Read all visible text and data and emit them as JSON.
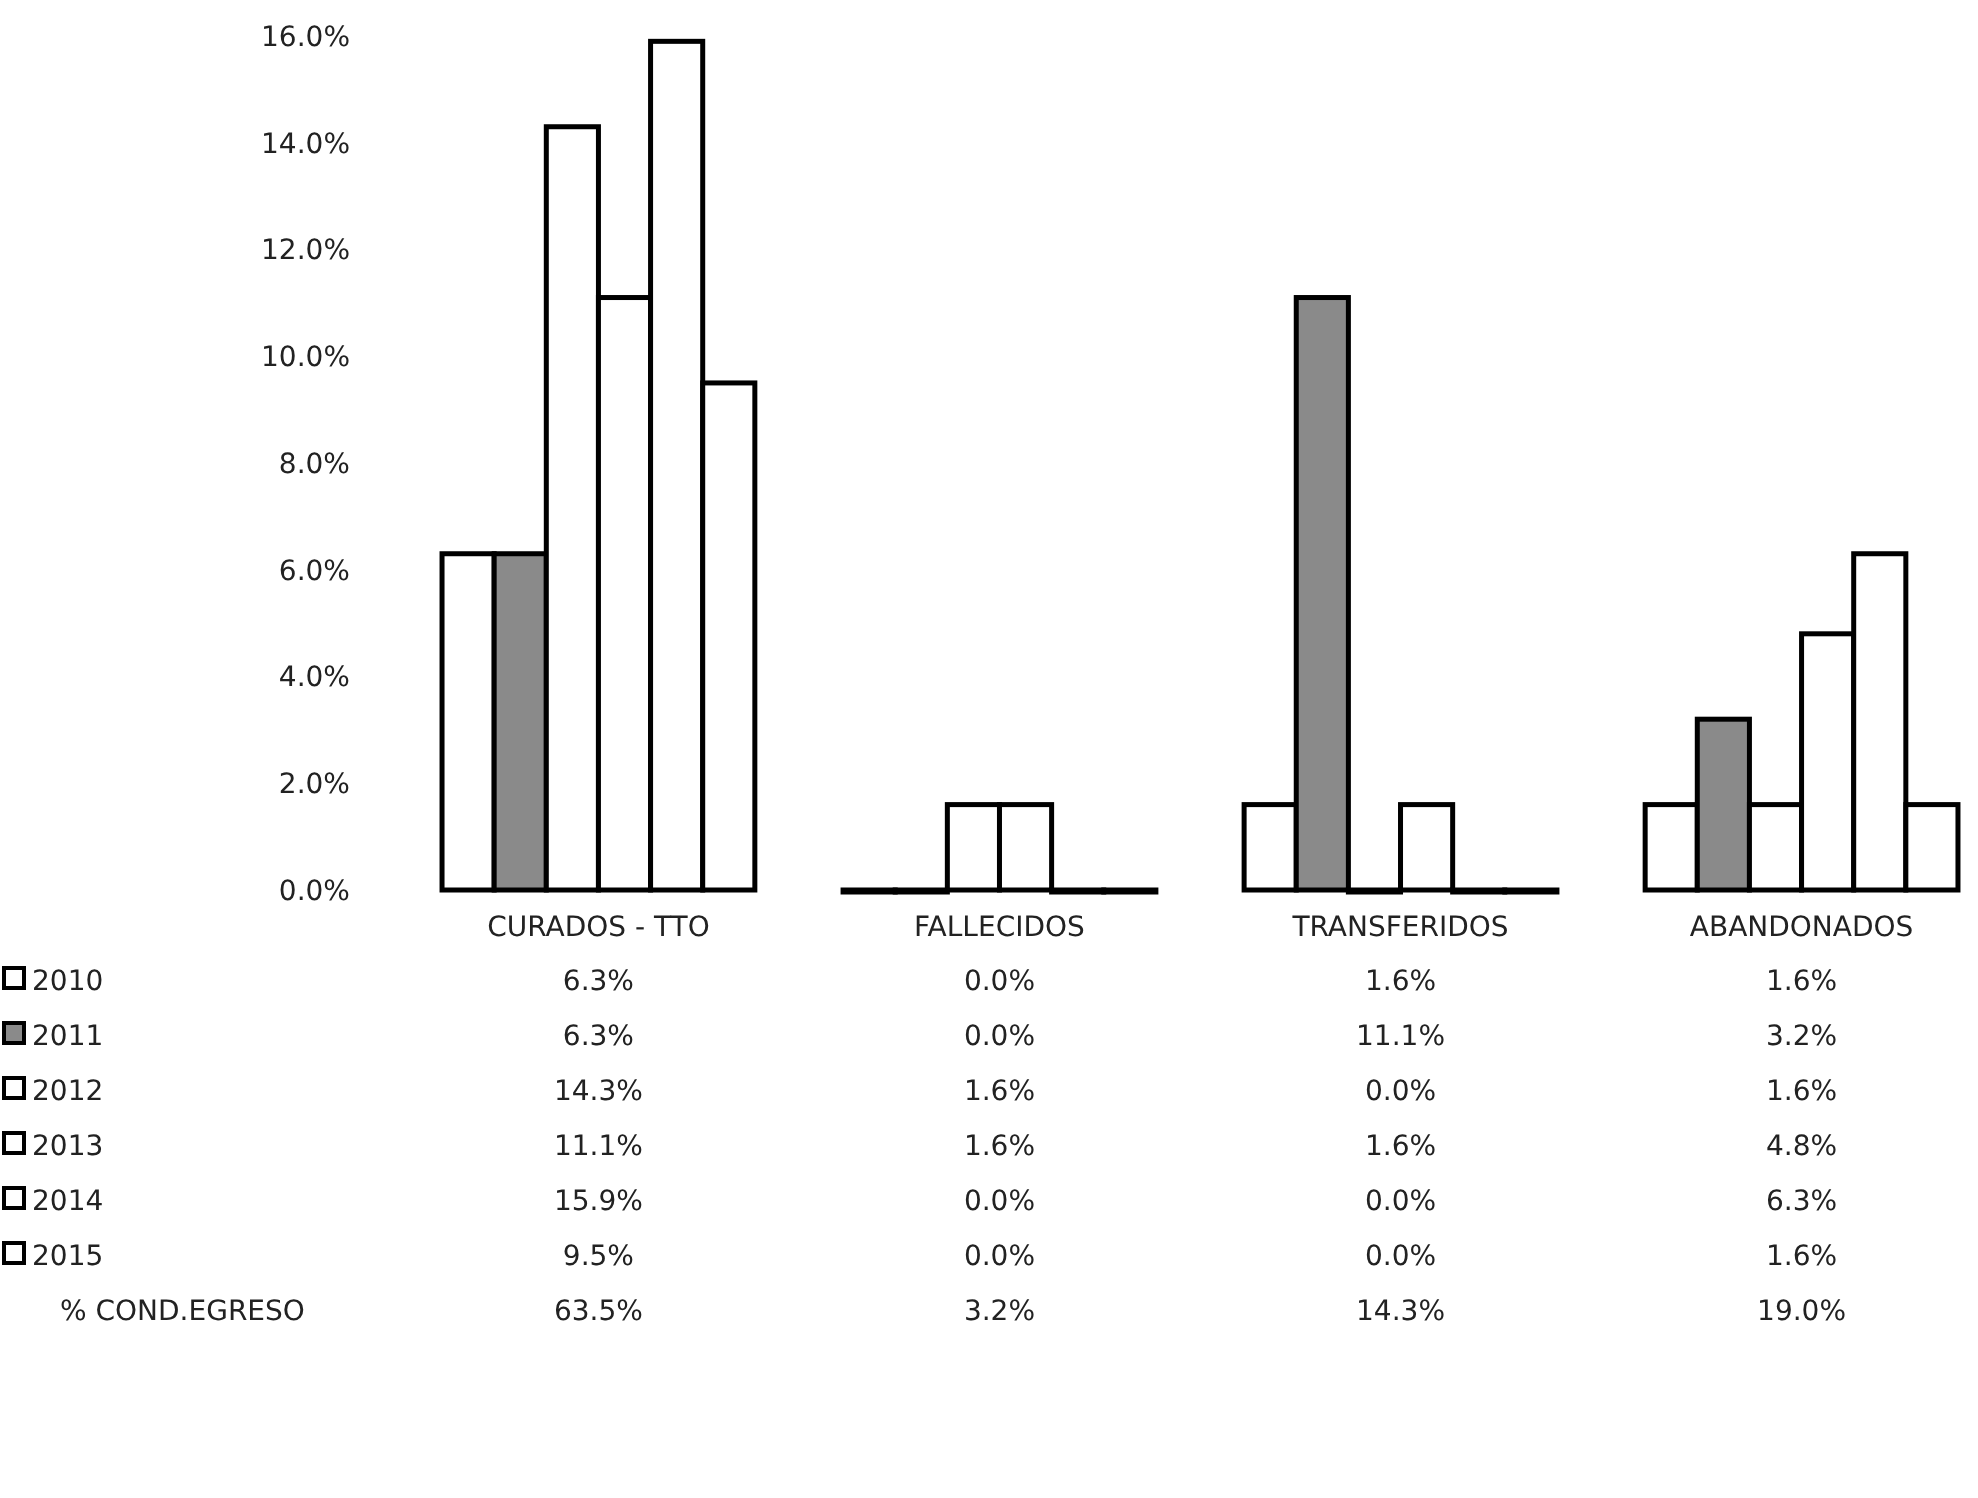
{
  "chart_data": {
    "type": "bar",
    "categories": [
      "CURADOS - TTO",
      "FALLECIDOS",
      "TRANSFERIDOS",
      "ABANDONADOS"
    ],
    "series": [
      {
        "name": "2010",
        "color": "#ffffff",
        "values": [
          6.3,
          0.0,
          1.6,
          1.6
        ]
      },
      {
        "name": "2011",
        "color": "#8a8a8a",
        "values": [
          6.3,
          0.0,
          11.1,
          3.2
        ]
      },
      {
        "name": "2012",
        "color": "#ffffff",
        "values": [
          14.3,
          1.6,
          0.0,
          1.6
        ]
      },
      {
        "name": "2013",
        "color": "#ffffff",
        "values": [
          11.1,
          1.6,
          1.6,
          4.8
        ]
      },
      {
        "name": "2014",
        "color": "#ffffff",
        "values": [
          15.9,
          0.0,
          0.0,
          6.3
        ]
      },
      {
        "name": "2015",
        "color": "#ffffff",
        "values": [
          9.5,
          0.0,
          0.0,
          1.6
        ]
      }
    ],
    "ylim": [
      0,
      16
    ],
    "yticks": [
      {
        "value": 0,
        "label": "0.0%"
      },
      {
        "value": 2,
        "label": "2.0%"
      },
      {
        "value": 4,
        "label": "4.0%"
      },
      {
        "value": 6,
        "label": "6.0%"
      },
      {
        "value": 8,
        "label": "8.0%"
      },
      {
        "value": 10,
        "label": "10.0%"
      },
      {
        "value": 12,
        "label": "12.0%"
      },
      {
        "value": 14,
        "label": "14.0%"
      },
      {
        "value": 16,
        "label": "16.0%"
      }
    ],
    "value_labels": [
      [
        "6.3%",
        "0.0%",
        "1.6%",
        "1.6%"
      ],
      [
        "6.3%",
        "0.0%",
        "11.1%",
        "3.2%"
      ],
      [
        "14.3%",
        "1.6%",
        "0.0%",
        "1.6%"
      ],
      [
        "11.1%",
        "1.6%",
        "1.6%",
        "4.8%"
      ],
      [
        "15.9%",
        "0.0%",
        "0.0%",
        "6.3%"
      ],
      [
        "9.5%",
        "0.0%",
        "0.0%",
        "1.6%"
      ]
    ],
    "annotations": [
      "% COND.EGRESO",
      "63.5%",
      "3.2%",
      "14.3%",
      "19.0%"
    ],
    "grid": false,
    "legend": "bottom"
  }
}
